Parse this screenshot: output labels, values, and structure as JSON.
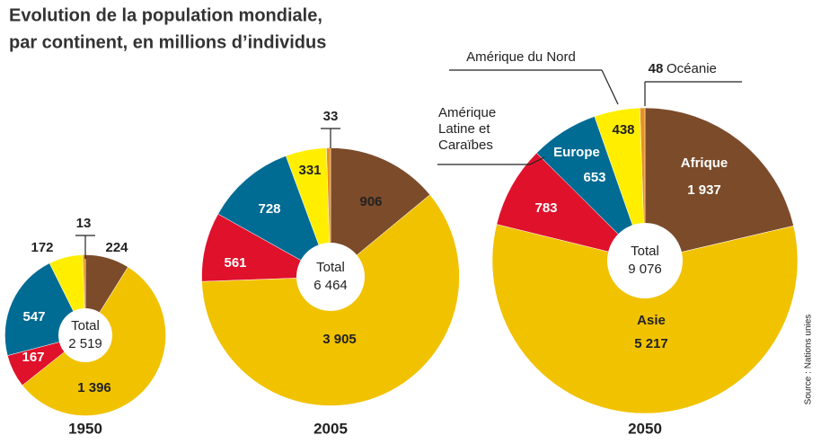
{
  "title": [
    "Evolution de la population mondiale,",
    "par continent, en millions d’individus"
  ],
  "source": "Source : Nations unies",
  "chart_data": [
    {
      "type": "pie",
      "title": "1950",
      "values": [
        224,
        1396,
        167,
        547,
        172,
        13
      ],
      "value_labels": [
        "224",
        "1 396",
        "167",
        "547",
        "172",
        "13"
      ],
      "colors": [
        "#7b4b2a",
        "#f1c200",
        "#e0112b",
        "#006b93",
        "#ffee00",
        "#e8921e"
      ],
      "total_label": "Total",
      "total": {
        "value": 2519,
        "label": "2 519"
      }
    },
    {
      "type": "pie",
      "title": "2005",
      "values": [
        906,
        3905,
        561,
        728,
        331,
        33
      ],
      "value_labels": [
        "906",
        "3 905",
        "561",
        "728",
        "331",
        "33"
      ],
      "colors": [
        "#7b4b2a",
        "#f1c200",
        "#e0112b",
        "#006b93",
        "#ffee00",
        "#e8921e"
      ],
      "total_label": "Total",
      "total": {
        "value": 6464,
        "label": "6 464"
      }
    },
    {
      "type": "pie",
      "title": "2050",
      "categories": [
        "Afrique",
        "Asie",
        "Amérique Latine et Caraïbes",
        "Europe",
        "Amérique du Nord",
        "Océanie"
      ],
      "values": [
        1937,
        5217,
        783,
        653,
        438,
        48
      ],
      "value_labels": [
        "1 937",
        "5 217",
        "783",
        "653",
        "438",
        "48"
      ],
      "colors": [
        "#7b4b2a",
        "#f1c200",
        "#e0112b",
        "#006b93",
        "#ffee00",
        "#e8921e"
      ],
      "total_label": "Total",
      "total": {
        "value": 9076,
        "label": "9 076"
      }
    }
  ]
}
